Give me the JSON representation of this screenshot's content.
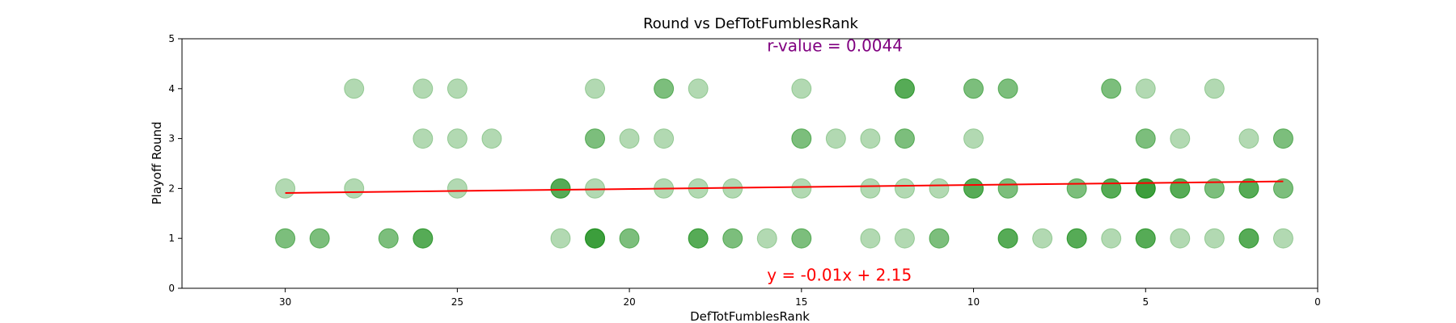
{
  "chart_data": {
    "type": "scatter",
    "title": "Round vs DefTotFumblesRank",
    "xlabel": "DefTotFumblesRank",
    "ylabel": "Playoff Round",
    "xlim": [
      33,
      0
    ],
    "ylim": [
      0,
      5
    ],
    "xticks": [
      30,
      25,
      20,
      15,
      10,
      5,
      0
    ],
    "yticks": [
      0,
      1,
      2,
      3,
      4,
      5
    ],
    "x_inverted": true,
    "grid": false,
    "marker_color": "#008000",
    "marker_alpha": 0.3,
    "points": [
      {
        "x": 30,
        "y": 1,
        "n": 2
      },
      {
        "x": 29,
        "y": 1,
        "n": 2
      },
      {
        "x": 27,
        "y": 1,
        "n": 2
      },
      {
        "x": 26,
        "y": 1,
        "n": 3
      },
      {
        "x": 22,
        "y": 1,
        "n": 1
      },
      {
        "x": 21,
        "y": 1,
        "n": 4
      },
      {
        "x": 20,
        "y": 1,
        "n": 2
      },
      {
        "x": 18,
        "y": 1,
        "n": 3
      },
      {
        "x": 17,
        "y": 1,
        "n": 2
      },
      {
        "x": 16,
        "y": 1,
        "n": 1
      },
      {
        "x": 15,
        "y": 1,
        "n": 2
      },
      {
        "x": 13,
        "y": 1,
        "n": 1
      },
      {
        "x": 12,
        "y": 1,
        "n": 1
      },
      {
        "x": 11,
        "y": 1,
        "n": 2
      },
      {
        "x": 9,
        "y": 1,
        "n": 3
      },
      {
        "x": 8,
        "y": 1,
        "n": 1
      },
      {
        "x": 7,
        "y": 1,
        "n": 3
      },
      {
        "x": 6,
        "y": 1,
        "n": 1
      },
      {
        "x": 5,
        "y": 1,
        "n": 3
      },
      {
        "x": 4,
        "y": 1,
        "n": 1
      },
      {
        "x": 3,
        "y": 1,
        "n": 1
      },
      {
        "x": 2,
        "y": 1,
        "n": 3
      },
      {
        "x": 1,
        "y": 1,
        "n": 1
      },
      {
        "x": 30,
        "y": 2,
        "n": 1
      },
      {
        "x": 28,
        "y": 2,
        "n": 1
      },
      {
        "x": 25,
        "y": 2,
        "n": 1
      },
      {
        "x": 22,
        "y": 2,
        "n": 3
      },
      {
        "x": 21,
        "y": 2,
        "n": 1
      },
      {
        "x": 19,
        "y": 2,
        "n": 1
      },
      {
        "x": 18,
        "y": 2,
        "n": 1
      },
      {
        "x": 17,
        "y": 2,
        "n": 1
      },
      {
        "x": 15,
        "y": 2,
        "n": 1
      },
      {
        "x": 13,
        "y": 2,
        "n": 1
      },
      {
        "x": 12,
        "y": 2,
        "n": 1
      },
      {
        "x": 11,
        "y": 2,
        "n": 1
      },
      {
        "x": 10,
        "y": 2,
        "n": 3
      },
      {
        "x": 9,
        "y": 2,
        "n": 2
      },
      {
        "x": 7,
        "y": 2,
        "n": 2
      },
      {
        "x": 6,
        "y": 2,
        "n": 3
      },
      {
        "x": 5,
        "y": 2,
        "n": 4
      },
      {
        "x": 4,
        "y": 2,
        "n": 3
      },
      {
        "x": 3,
        "y": 2,
        "n": 2
      },
      {
        "x": 2,
        "y": 2,
        "n": 3
      },
      {
        "x": 1,
        "y": 2,
        "n": 2
      },
      {
        "x": 26,
        "y": 3,
        "n": 1
      },
      {
        "x": 25,
        "y": 3,
        "n": 1
      },
      {
        "x": 24,
        "y": 3,
        "n": 1
      },
      {
        "x": 21,
        "y": 3,
        "n": 2
      },
      {
        "x": 20,
        "y": 3,
        "n": 1
      },
      {
        "x": 19,
        "y": 3,
        "n": 1
      },
      {
        "x": 15,
        "y": 3,
        "n": 2
      },
      {
        "x": 14,
        "y": 3,
        "n": 1
      },
      {
        "x": 13,
        "y": 3,
        "n": 1
      },
      {
        "x": 12,
        "y": 3,
        "n": 2
      },
      {
        "x": 10,
        "y": 3,
        "n": 1
      },
      {
        "x": 5,
        "y": 3,
        "n": 2
      },
      {
        "x": 4,
        "y": 3,
        "n": 1
      },
      {
        "x": 2,
        "y": 3,
        "n": 1
      },
      {
        "x": 1,
        "y": 3,
        "n": 2
      },
      {
        "x": 28,
        "y": 4,
        "n": 1
      },
      {
        "x": 26,
        "y": 4,
        "n": 1
      },
      {
        "x": 25,
        "y": 4,
        "n": 1
      },
      {
        "x": 21,
        "y": 4,
        "n": 1
      },
      {
        "x": 19,
        "y": 4,
        "n": 2
      },
      {
        "x": 18,
        "y": 4,
        "n": 1
      },
      {
        "x": 15,
        "y": 4,
        "n": 1
      },
      {
        "x": 12,
        "y": 4,
        "n": 3
      },
      {
        "x": 10,
        "y": 4,
        "n": 2
      },
      {
        "x": 9,
        "y": 4,
        "n": 2
      },
      {
        "x": 6,
        "y": 4,
        "n": 2
      },
      {
        "x": 5,
        "y": 4,
        "n": 1
      },
      {
        "x": 3,
        "y": 4,
        "n": 1
      }
    ],
    "regression": {
      "slope": -0.008,
      "intercept": 2.15,
      "x_range": [
        30,
        1
      ],
      "color": "#ff0000",
      "equation_label": "y = -0.01x + 2.15",
      "equation_label_x": 16,
      "equation_label_y": 0.15
    },
    "r_annotation": {
      "label": "r-value = 0.0044",
      "x": 16,
      "y": 4.75,
      "color": "#800080"
    }
  }
}
